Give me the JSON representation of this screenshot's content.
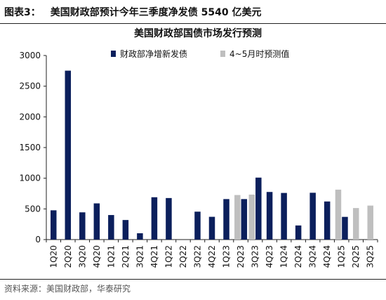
{
  "header": {
    "fig_no": "图表3：",
    "title": "美国财政部预计今年三季度净发债 5540 亿美元"
  },
  "source": "资料来源：美国财政部，华泰研究",
  "colors": {
    "actual": "#0b1f5c",
    "forecast": "#bfbfbf"
  },
  "chart_data": {
    "type": "bar",
    "title": "美国财政部国债市场发行预测",
    "xlabel": "",
    "ylabel": "",
    "ylim": [
      0,
      3000
    ],
    "yticks": [
      0,
      500,
      1000,
      1500,
      2000,
      2500,
      3000
    ],
    "grid": false,
    "legend_position": "top",
    "categories": [
      "1Q20",
      "2Q20",
      "3Q20",
      "4Q20",
      "1Q21",
      "2Q21",
      "3Q21",
      "4Q21",
      "1Q22",
      "2Q22",
      "3Q22",
      "4Q22",
      "1Q23",
      "2Q23",
      "3Q23",
      "4Q23",
      "1Q24",
      "2Q24",
      "3Q24",
      "4Q24",
      "1Q25",
      "2Q25",
      "3Q25"
    ],
    "series": [
      {
        "name": "财政部净增新发债",
        "values": [
          477,
          2753,
          444,
          590,
          400,
          319,
          103,
          690,
          677,
          0,
          455,
          371,
          660,
          660,
          1010,
          776,
          760,
          230,
          763,
          621,
          370,
          null,
          null
        ]
      },
      {
        "name": "4~5月时预测值",
        "values": [
          null,
          null,
          null,
          null,
          null,
          null,
          null,
          null,
          null,
          null,
          null,
          null,
          null,
          726,
          733,
          null,
          null,
          null,
          null,
          null,
          814,
          514,
          554
        ]
      }
    ]
  }
}
